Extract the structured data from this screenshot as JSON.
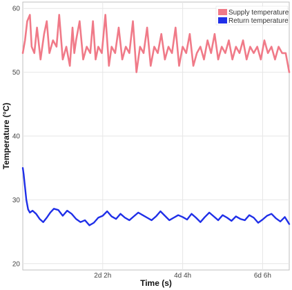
{
  "chart_data": {
    "type": "line",
    "xlabel": "Time (s)",
    "ylabel": "Temperature (°C)",
    "x_unit": "seconds",
    "xlim": [
      0,
      600000
    ],
    "ylim": [
      19,
      61
    ],
    "x_ticks": [
      {
        "value": 180000,
        "label": "2d 2h"
      },
      {
        "value": 360000,
        "label": "4d 4h"
      },
      {
        "value": 540000,
        "label": "6d 6h"
      }
    ],
    "y_ticks": [
      {
        "value": 20,
        "label": "20"
      },
      {
        "value": 30,
        "label": "30"
      },
      {
        "value": 40,
        "label": "40"
      },
      {
        "value": 50,
        "label": "50"
      },
      {
        "value": 60,
        "label": "60"
      }
    ],
    "grid": true,
    "legend_position": "top-right",
    "series": [
      {
        "name": "Supply temperature",
        "color": "#f07a88",
        "x": [
          0,
          5000,
          10000,
          16000,
          20000,
          26000,
          32000,
          40000,
          48000,
          54000,
          60000,
          68000,
          76000,
          82000,
          90000,
          98000,
          106000,
          112000,
          116000,
          120000,
          128000,
          136000,
          144000,
          152000,
          158000,
          164000,
          170000,
          178000,
          186000,
          194000,
          200000,
          208000,
          216000,
          224000,
          232000,
          240000,
          248000,
          256000,
          264000,
          272000,
          280000,
          288000,
          296000,
          304000,
          312000,
          320000,
          328000,
          336000,
          344000,
          352000,
          360000,
          368000,
          376000,
          384000,
          392000,
          400000,
          408000,
          416000,
          424000,
          432000,
          440000,
          448000,
          456000,
          464000,
          472000,
          480000,
          488000,
          496000,
          504000,
          512000,
          520000,
          528000,
          536000,
          544000,
          552000,
          560000,
          568000,
          576000,
          584000,
          592000,
          600000
        ],
        "y": [
          53,
          55,
          58,
          59,
          54,
          53,
          57,
          52,
          56,
          58,
          53,
          55,
          54,
          59,
          52,
          54,
          51,
          57,
          53,
          55,
          58,
          52,
          54,
          53,
          58,
          52,
          54,
          53,
          59,
          51,
          54,
          53,
          57,
          52,
          54,
          53,
          58,
          50,
          54,
          53,
          57,
          51,
          54,
          53,
          56,
          52,
          54,
          53,
          57,
          51,
          54,
          53,
          56,
          51,
          53,
          54,
          52,
          55,
          53,
          56,
          52,
          54,
          53,
          55,
          52,
          54,
          53,
          55,
          52,
          54,
          53,
          54,
          52,
          55,
          53,
          54,
          52,
          54,
          53,
          53,
          50
        ]
      },
      {
        "name": "Return temperature",
        "color": "#1f2fe8",
        "x": [
          0,
          2000,
          5000,
          8000,
          12000,
          16000,
          22000,
          30000,
          38000,
          46000,
          54000,
          62000,
          70000,
          80000,
          90000,
          100000,
          110000,
          120000,
          130000,
          140000,
          150000,
          160000,
          170000,
          180000,
          190000,
          200000,
          210000,
          220000,
          230000,
          240000,
          250000,
          260000,
          270000,
          280000,
          290000,
          300000,
          310000,
          320000,
          330000,
          340000,
          350000,
          360000,
          370000,
          380000,
          390000,
          400000,
          410000,
          420000,
          430000,
          440000,
          450000,
          460000,
          470000,
          480000,
          490000,
          500000,
          510000,
          520000,
          530000,
          540000,
          550000,
          560000,
          570000,
          580000,
          590000,
          600000
        ],
        "y": [
          35,
          34,
          32,
          30,
          28.5,
          28,
          28.3,
          27.8,
          27,
          26.5,
          27.2,
          28,
          28.6,
          28.4,
          27.5,
          28.3,
          27.8,
          27,
          26.5,
          26.8,
          26,
          26.4,
          27.2,
          27.5,
          28.2,
          27.4,
          27,
          27.8,
          27.2,
          26.8,
          27.4,
          28,
          27.6,
          27.2,
          26.8,
          27.4,
          28.2,
          27.5,
          26.8,
          27.2,
          27.6,
          27.3,
          26.9,
          27.8,
          27.2,
          26.5,
          27.3,
          28,
          27.4,
          26.8,
          27.6,
          27.2,
          26.7,
          27.4,
          27,
          26.8,
          27.6,
          27.2,
          26.4,
          26.9,
          27.5,
          27.8,
          27.1,
          26.6,
          27.3,
          26.2
        ]
      }
    ]
  }
}
